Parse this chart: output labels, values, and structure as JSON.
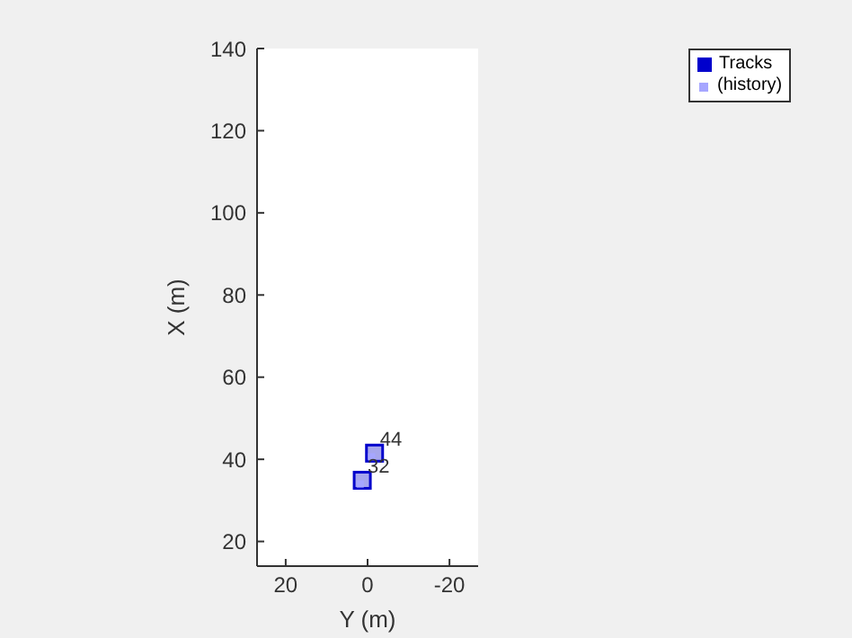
{
  "chart_data": {
    "type": "scatter",
    "xlabel": "Y (m)",
    "ylabel": "X (m)",
    "xlim": [
      27,
      -27
    ],
    "xticks": [
      20,
      0,
      -20
    ],
    "ylim": [
      14,
      140
    ],
    "yticks": [
      20,
      40,
      60,
      80,
      100,
      120,
      140
    ],
    "series": [
      {
        "name": "Tracks",
        "color": "#0000cc",
        "x": [
          -1.7,
          1.3
        ],
        "values": [
          41.5,
          34.9
        ]
      },
      {
        "name": "(history)",
        "color": "#a6a6ff",
        "x": [
          -1.0,
          1.8
        ],
        "values": [
          40.6,
          34.0
        ]
      }
    ],
    "annotations": [
      {
        "text": "44",
        "x": -1.7,
        "y": 41.5
      },
      {
        "text": "32",
        "x": 1.3,
        "y": 34.9
      }
    ],
    "marker": "square",
    "legend": "top right"
  }
}
